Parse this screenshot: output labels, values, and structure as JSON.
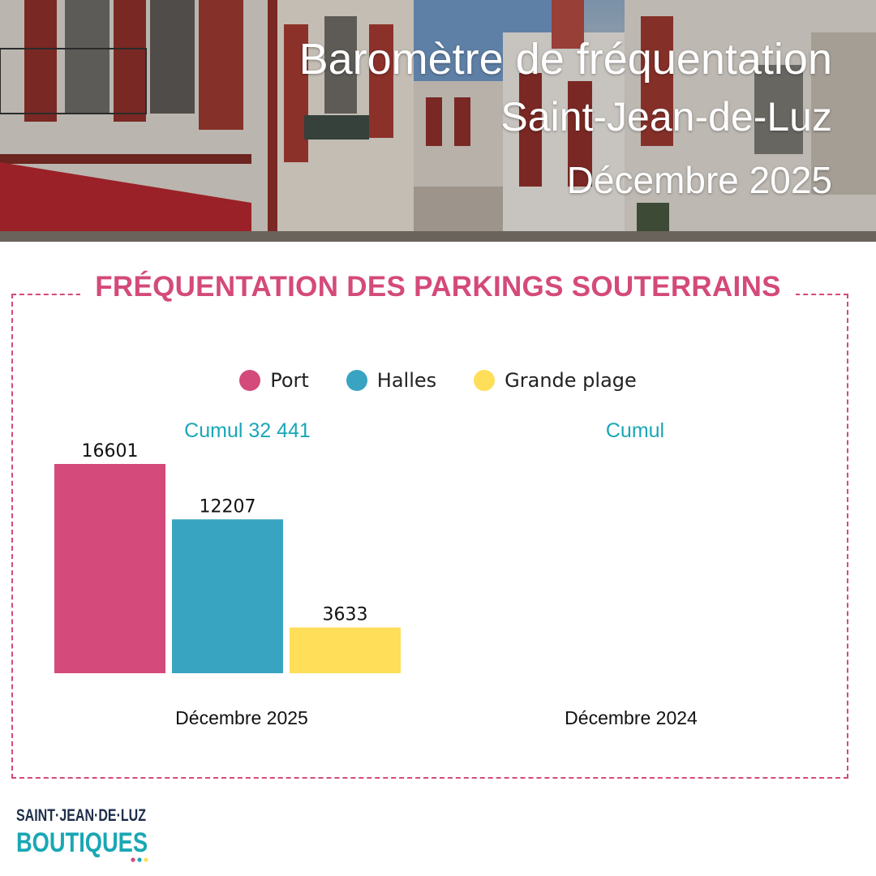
{
  "header": {
    "line1": "Baromètre de fréquentation",
    "line2": "Saint-Jean-de-Luz",
    "line3": "Décembre 2025"
  },
  "section": {
    "title": "FRÉQUENTATION DES PARKINGS SOUTERRAINS"
  },
  "colors": {
    "port": "#d44a7a",
    "halles": "#38a4c1",
    "grande_plage": "#ffde59",
    "frame": "#d44a7a",
    "cumul_text": "#19a7b5"
  },
  "chart_data": {
    "type": "bar",
    "categories": [
      "Décembre 2025",
      "Décembre 2024"
    ],
    "series": [
      {
        "name": "Port",
        "values": [
          16601,
          null
        ]
      },
      {
        "name": "Halles",
        "values": [
          12207,
          null
        ]
      },
      {
        "name": "Grande plage",
        "values": [
          3633,
          null
        ]
      }
    ],
    "cumul_labels": [
      "Cumul 32 441",
      "Cumul"
    ],
    "ylim": [
      0,
      16601
    ],
    "grid": false,
    "legend": "top-center"
  },
  "logo": {
    "line1": "SAINT·JEAN·DE·LUZ",
    "line2": "BOUTIQUES"
  }
}
